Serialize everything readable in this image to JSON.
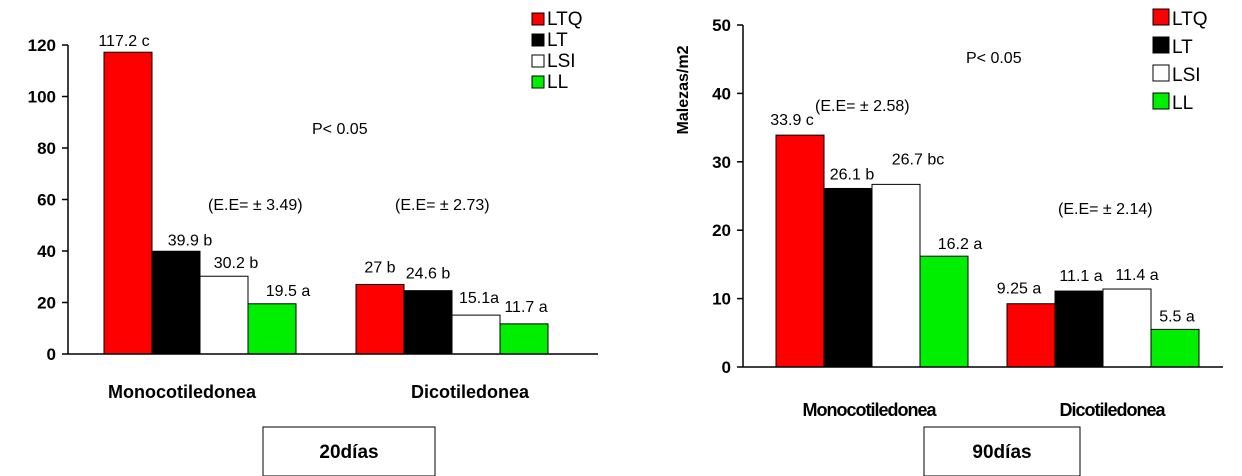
{
  "chart_data": [
    {
      "type": "bar",
      "title": "",
      "caption": "20días",
      "xlabel": "",
      "ylabel": "",
      "ylim": [
        0,
        120
      ],
      "yticks": [
        0,
        20,
        40,
        60,
        80,
        100,
        120
      ],
      "categories": [
        "Monocotiledonea",
        "Dicotiledonea"
      ],
      "series": [
        {
          "name": "LTQ",
          "color": "#ff0000",
          "values": [
            117.2,
            27
          ],
          "labels": [
            "117.2 c",
            "27 b"
          ]
        },
        {
          "name": "LT",
          "color": "#000000",
          "values": [
            39.9,
            24.6
          ],
          "labels": [
            "39.9 b",
            "24.6 b"
          ]
        },
        {
          "name": "LSI",
          "color": "#ffffff",
          "values": [
            30.2,
            15.1
          ],
          "labels": [
            "30.2 b",
            "15.1a"
          ]
        },
        {
          "name": "LL",
          "color": "#00ee00",
          "values": [
            19.5,
            11.7
          ],
          "labels": [
            "19.5 a",
            "11.7 a"
          ]
        }
      ],
      "annotations": [
        "P< 0.05",
        "(E.E= ± 3.49)",
        "(E.E= ± 2.73)"
      ],
      "legend": "top-right"
    },
    {
      "type": "bar",
      "title": "",
      "caption": "90días",
      "xlabel": "",
      "ylabel": "Malezas/m2",
      "ylim": [
        0,
        50
      ],
      "yticks": [
        0,
        10,
        20,
        30,
        40,
        50
      ],
      "categories": [
        "Monocotiledonea",
        "Dicotiledonea"
      ],
      "series": [
        {
          "name": "LTQ",
          "color": "#ff0000",
          "values": [
            33.9,
            9.25
          ],
          "labels": [
            "33.9 c",
            "9.25 a"
          ]
        },
        {
          "name": "LT",
          "color": "#000000",
          "values": [
            26.1,
            11.1
          ],
          "labels": [
            "26.1 b",
            "11.1 a"
          ]
        },
        {
          "name": "LSI",
          "color": "#ffffff",
          "values": [
            26.7,
            11.4
          ],
          "labels": [
            "26.7 bc",
            "11.4 a"
          ]
        },
        {
          "name": "LL",
          "color": "#00ee00",
          "values": [
            16.2,
            5.5
          ],
          "labels": [
            "16.2 a",
            "5.5 a"
          ]
        }
      ],
      "annotations": [
        "P< 0.05",
        "(E.E= ± 2.58)",
        "(E.E= ± 2.14)"
      ],
      "legend": "top-right"
    }
  ]
}
